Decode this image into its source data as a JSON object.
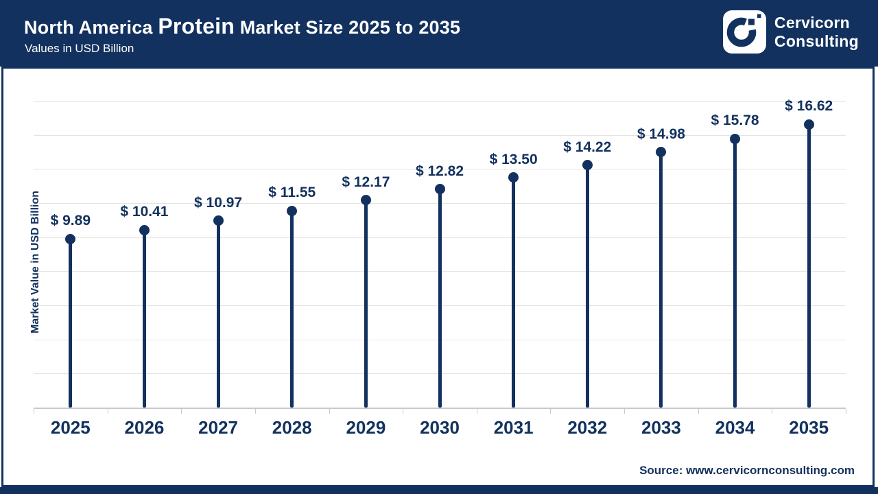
{
  "header": {
    "title_prefix": "North America",
    "title_highlight": "Protein",
    "title_suffix": "Market Size 2025 to 2035",
    "subtitle": "Values in USD Billion",
    "brand": {
      "line1": "Cervicorn",
      "line2": "Consulting"
    }
  },
  "chart_data": {
    "type": "lollipop",
    "title": "North America Protein Market Size 2025 to 2035",
    "subtitle": "Values in USD Billion",
    "categories": [
      "2025",
      "2026",
      "2027",
      "2028",
      "2029",
      "2030",
      "2031",
      "2032",
      "2033",
      "2034",
      "2035"
    ],
    "values": [
      9.89,
      10.41,
      10.97,
      11.55,
      12.17,
      12.82,
      13.5,
      14.22,
      14.98,
      15.78,
      16.62
    ],
    "value_prefix": "$ ",
    "xlabel": "",
    "ylabel": "Market Value in USD Billion",
    "ylim": [
      0,
      18
    ],
    "grid_step": 2,
    "grid": true,
    "legend": false,
    "colors": {
      "navy": "#12315e",
      "gridline": "#e4e4e4",
      "axis": "#c9c9c9"
    }
  },
  "footer": {
    "source": "Source: www.cervicornconsulting.com"
  }
}
